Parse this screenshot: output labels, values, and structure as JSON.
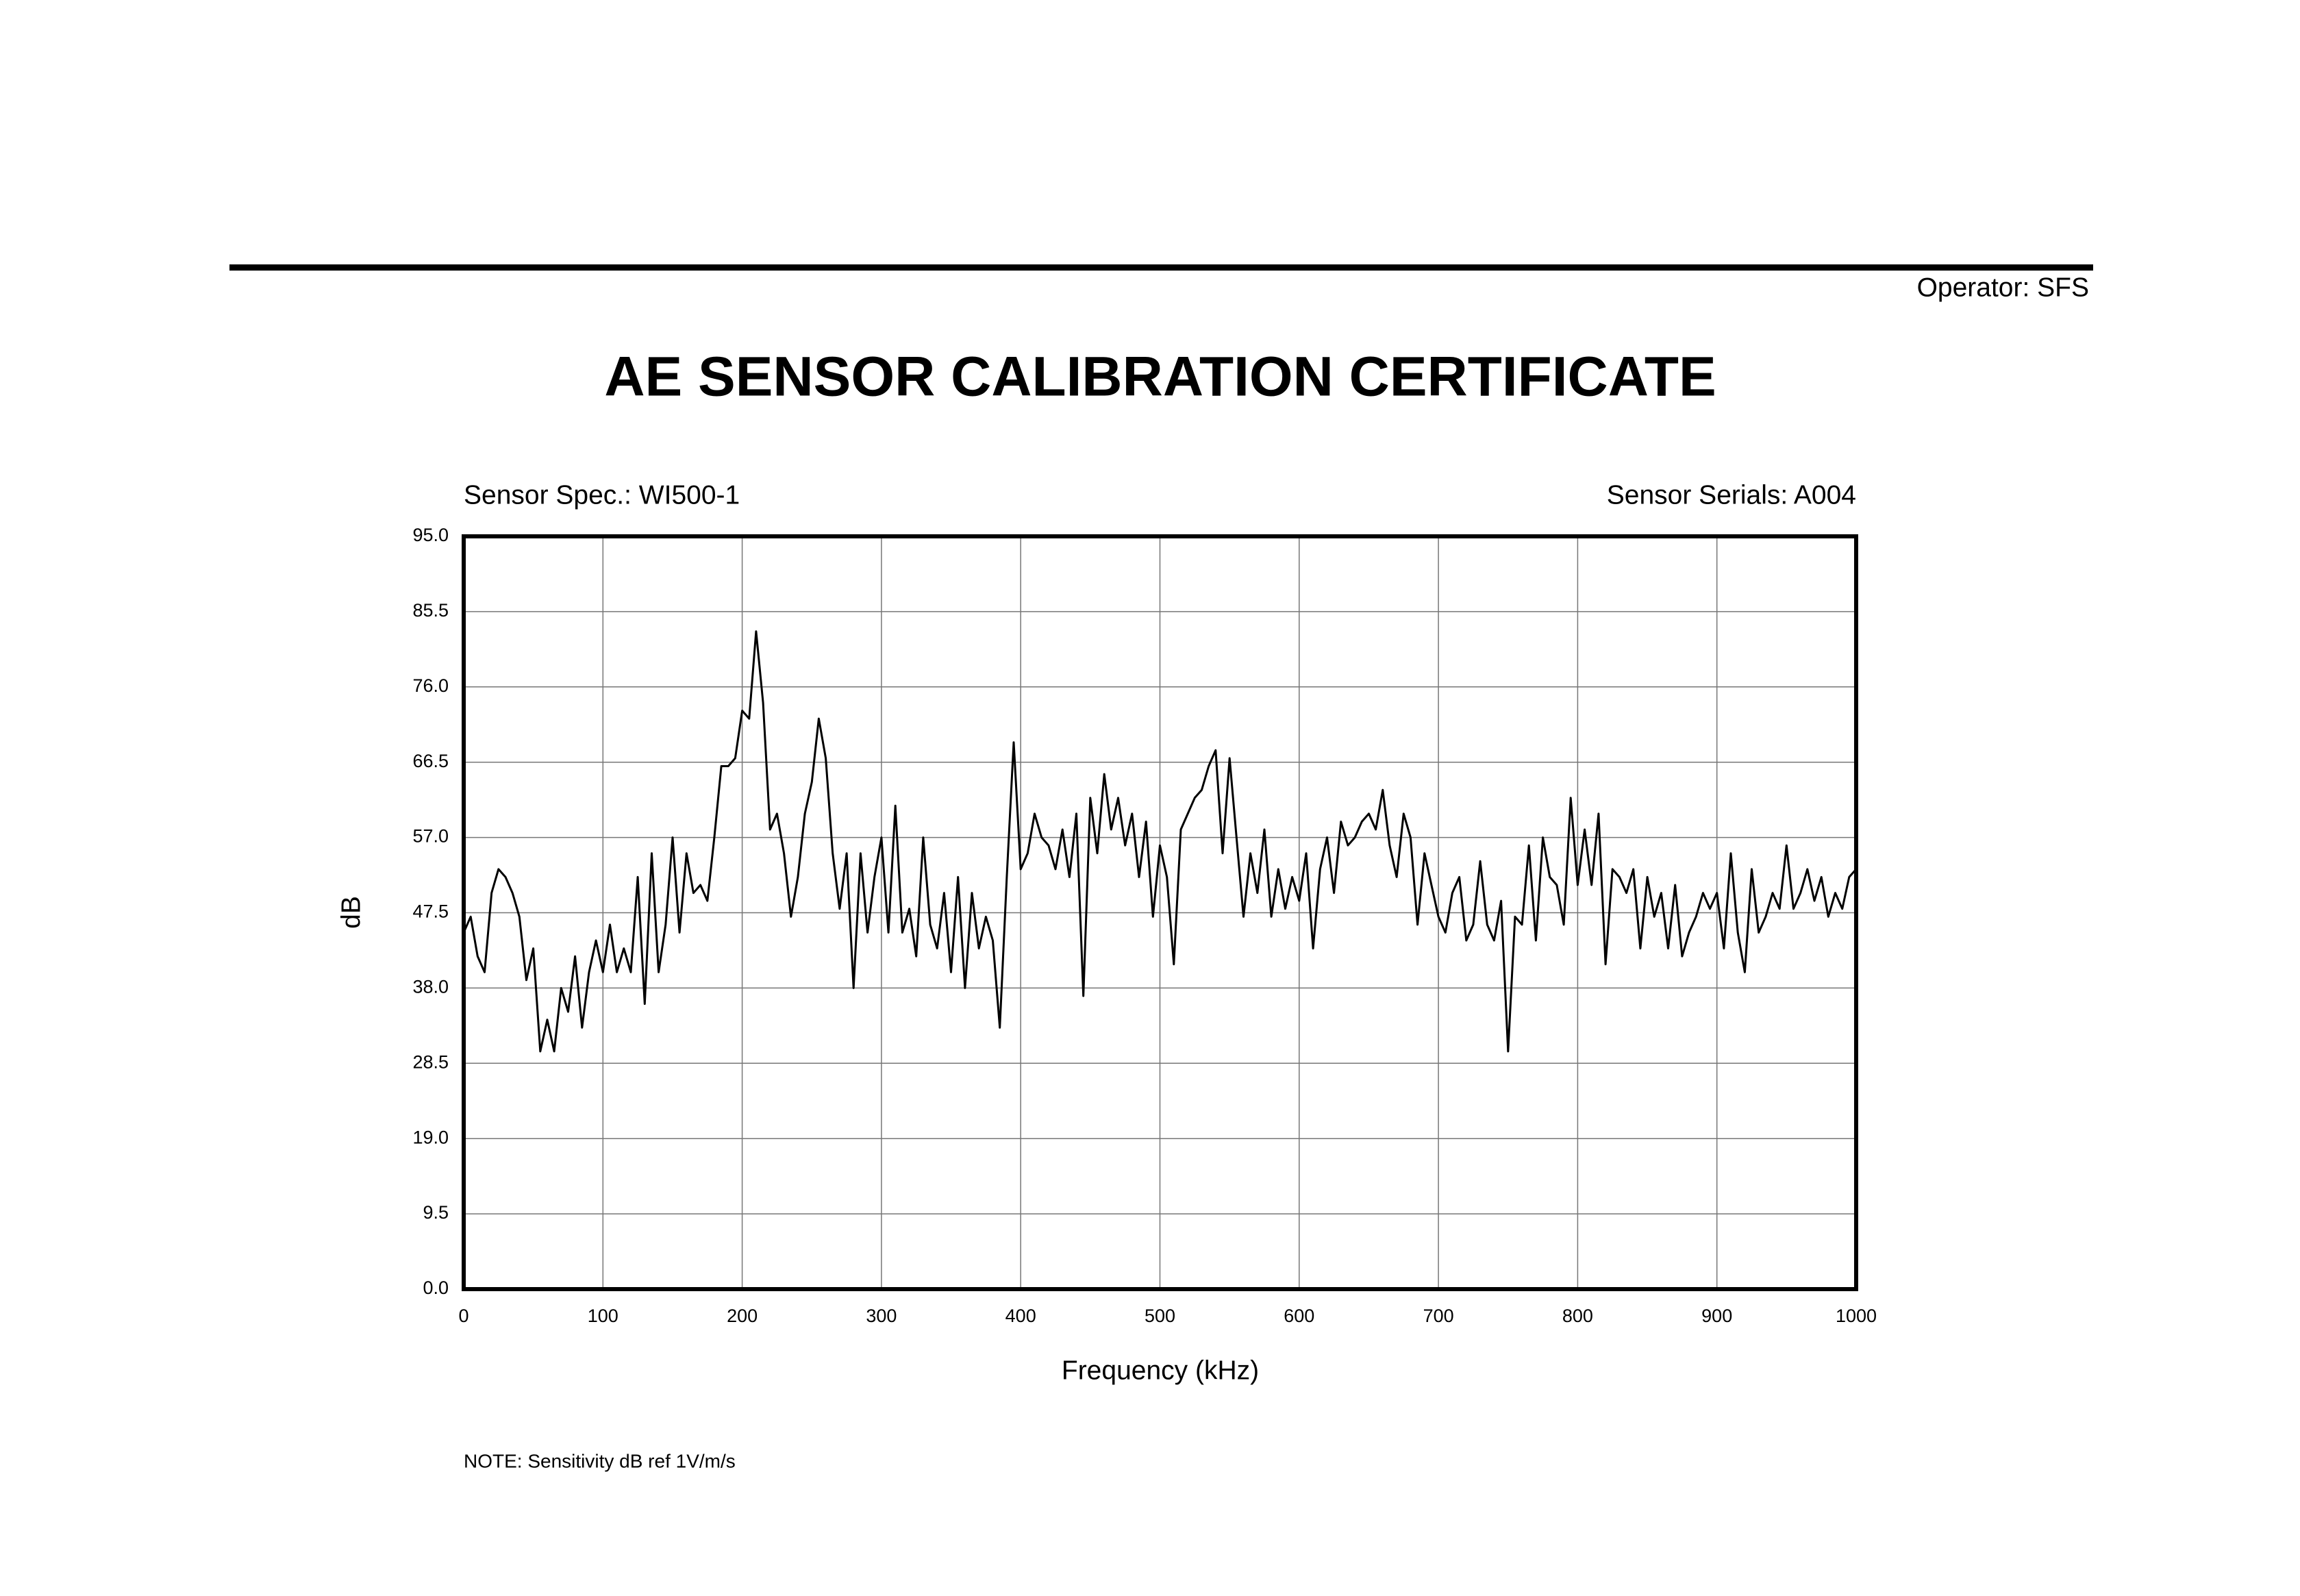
{
  "operator": "Operator: SFS",
  "sensor_spec": "Sensor Spec.: WI500-1",
  "sensor_serials": "Sensor Serials: A004",
  "note": "NOTE:  Sensitivity dB ref 1V/m/s",
  "chart_data": {
    "type": "line",
    "title": "AE SENSOR CALIBRATION CERTIFICATE",
    "x_label": "Frequency (kHz)",
    "y_label": "dB",
    "color": "#000000",
    "grid": true,
    "xlim": [
      0,
      1000
    ],
    "xticks": [
      0,
      100,
      200,
      300,
      400,
      500,
      600,
      700,
      800,
      900,
      1000
    ],
    "ylim": [
      0,
      95
    ],
    "yticks": [
      {
        "value": 0,
        "label": "0.0"
      },
      9.5,
      {
        "value": 19,
        "label": "19.0"
      },
      28.5,
      {
        "value": 38,
        "label": "38.0"
      },
      47.5,
      {
        "value": 57,
        "label": "57.0"
      },
      66.5,
      {
        "value": 76,
        "label": "76.0"
      },
      85.5,
      {
        "value": 95,
        "label": "95.0"
      }
    ],
    "x": [
      0,
      5,
      10,
      15,
      20,
      25,
      30,
      35,
      40,
      45,
      50,
      55,
      60,
      65,
      70,
      75,
      80,
      85,
      90,
      95,
      100,
      105,
      110,
      115,
      120,
      125,
      130,
      135,
      140,
      145,
      150,
      155,
      160,
      165,
      170,
      175,
      180,
      185,
      190,
      195,
      200,
      205,
      210,
      215,
      220,
      225,
      230,
      235,
      240,
      245,
      250,
      255,
      260,
      265,
      270,
      275,
      280,
      285,
      290,
      295,
      300,
      305,
      310,
      315,
      320,
      325,
      330,
      335,
      340,
      345,
      350,
      355,
      360,
      365,
      370,
      375,
      380,
      385,
      390,
      395,
      400,
      405,
      410,
      415,
      420,
      425,
      430,
      435,
      440,
      445,
      450,
      455,
      460,
      465,
      470,
      475,
      480,
      485,
      490,
      495,
      500,
      505,
      510,
      515,
      520,
      525,
      530,
      535,
      540,
      545,
      550,
      555,
      560,
      565,
      570,
      575,
      580,
      585,
      590,
      595,
      600,
      605,
      610,
      615,
      620,
      625,
      630,
      635,
      640,
      645,
      650,
      655,
      660,
      665,
      670,
      675,
      680,
      685,
      690,
      695,
      700,
      705,
      710,
      715,
      720,
      725,
      730,
      735,
      740,
      745,
      750,
      755,
      760,
      765,
      770,
      775,
      780,
      785,
      790,
      795,
      800,
      805,
      810,
      815,
      820,
      825,
      830,
      835,
      840,
      845,
      850,
      855,
      860,
      865,
      870,
      875,
      880,
      885,
      890,
      895,
      900,
      905,
      910,
      915,
      920,
      925,
      930,
      935,
      940,
      945,
      950,
      955,
      960,
      965,
      970,
      975,
      980,
      985,
      990,
      995,
      1000
    ],
    "values": [
      45,
      47,
      42,
      40,
      50,
      53,
      52,
      50,
      47,
      39,
      43,
      30,
      34,
      30,
      38,
      35,
      42,
      33,
      40,
      44,
      40,
      46,
      40,
      43,
      40,
      52,
      36,
      55,
      40,
      46,
      57,
      45,
      55,
      50,
      51,
      49,
      57,
      66,
      66,
      67,
      73,
      72,
      83,
      74,
      58,
      60,
      55,
      47,
      52,
      60,
      64,
      72,
      67,
      55,
      48,
      55,
      38,
      55,
      45,
      52,
      57,
      45,
      61,
      45,
      48,
      42,
      57,
      46,
      43,
      50,
      40,
      52,
      38,
      50,
      43,
      47,
      44,
      33,
      52,
      69,
      53,
      55,
      60,
      57,
      56,
      53,
      58,
      52,
      60,
      37,
      62,
      55,
      65,
      58,
      62,
      56,
      60,
      52,
      59,
      47,
      56,
      52,
      41,
      58,
      60,
      62,
      63,
      66,
      68,
      55,
      67,
      57,
      47,
      55,
      50,
      58,
      47,
      53,
      48,
      52,
      49,
      55,
      43,
      53,
      57,
      50,
      59,
      56,
      57,
      59,
      60,
      58,
      63,
      56,
      52,
      60,
      57,
      46,
      55,
      51,
      47,
      45,
      50,
      52,
      44,
      46,
      54,
      46,
      44,
      49,
      30,
      47,
      46,
      56,
      44,
      57,
      52,
      51,
      46,
      62,
      51,
      58,
      51,
      60,
      41,
      53,
      52,
      50,
      53,
      43,
      52,
      47,
      50,
      43,
      51,
      42,
      45,
      47,
      50,
      48,
      50,
      43,
      55,
      45,
      40,
      53,
      45,
      47,
      50,
      48,
      56,
      48,
      50,
      53,
      49,
      52,
      47,
      50,
      48,
      52,
      53
    ]
  }
}
